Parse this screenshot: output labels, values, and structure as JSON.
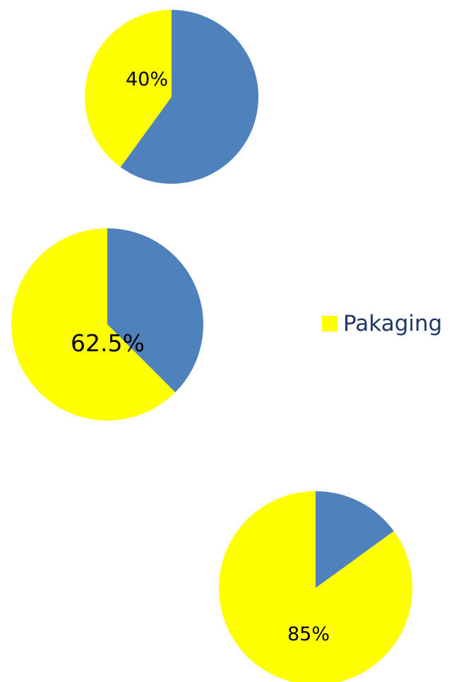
{
  "chart_data": [
    {
      "type": "pie",
      "slices": [
        {
          "label": "Pakaging",
          "value": 40,
          "color": "#FFFF00"
        },
        {
          "label": "",
          "value": 60,
          "color": "#4F81BD"
        }
      ],
      "data_label": "40%"
    },
    {
      "type": "pie",
      "slices": [
        {
          "label": "Pakaging",
          "value": 62.5,
          "color": "#FFFF00"
        },
        {
          "label": "",
          "value": 37.5,
          "color": "#4F81BD"
        }
      ],
      "data_label": "62.5%"
    },
    {
      "type": "pie",
      "slices": [
        {
          "label": "Pakaging",
          "value": 85,
          "color": "#FFFF00"
        },
        {
          "label": "",
          "value": 15,
          "color": "#4F81BD"
        }
      ],
      "data_label": "85%"
    }
  ],
  "legend": {
    "label": "Pakaging",
    "color": "#FFFF00",
    "text_color": "#1F3864"
  }
}
